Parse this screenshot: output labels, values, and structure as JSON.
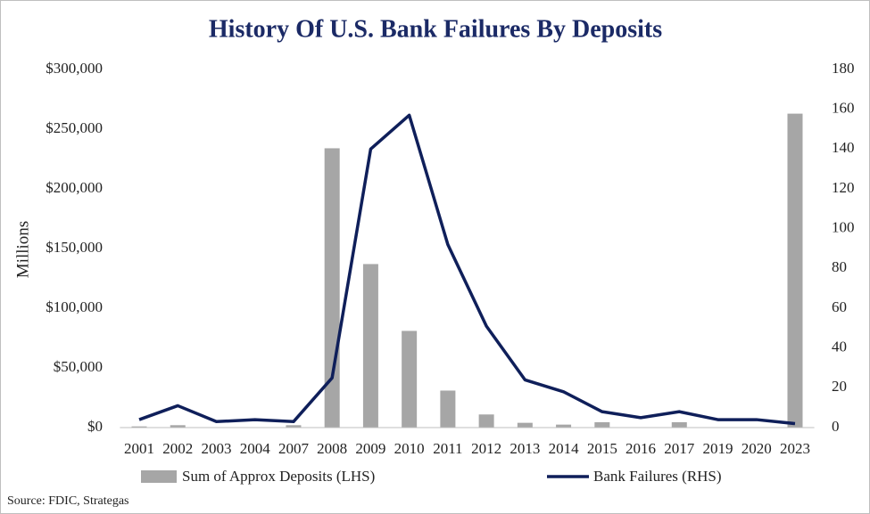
{
  "chart_data": {
    "type": "bar",
    "title": "History Of U.S. Bank Failures By Deposits",
    "y_label": "Millions",
    "source": "Source: FDIC, Strategas",
    "categories": [
      "2001",
      "2002",
      "2003",
      "2004",
      "2007",
      "2008",
      "2009",
      "2010",
      "2011",
      "2012",
      "2013",
      "2014",
      "2015",
      "2016",
      "2017",
      "2019",
      "2020",
      "2023"
    ],
    "series": [
      {
        "name": "Sum of Approx Deposits (LHS)",
        "type": "bar",
        "axis": "y",
        "color": "#a6a6a6",
        "values": [
          1000,
          2000,
          0,
          0,
          2000,
          234000,
          137000,
          81000,
          31000,
          11000,
          4000,
          2500,
          4500,
          0,
          4500,
          0,
          0,
          263000
        ]
      },
      {
        "name": "Bank Failures (RHS)",
        "type": "line",
        "axis": "y2",
        "color": "#0f1f5a",
        "values": [
          4,
          11,
          3,
          4,
          3,
          25,
          140,
          157,
          92,
          51,
          24,
          18,
          8,
          5,
          8,
          4,
          4,
          2
        ]
      }
    ],
    "ylim": [
      0,
      300000
    ],
    "yticks": [
      {
        "value": 0,
        "label": "$0"
      },
      {
        "value": 50000,
        "label": "$50,000"
      },
      {
        "value": 100000,
        "label": "$100,000"
      },
      {
        "value": 150000,
        "label": "$150,000"
      },
      {
        "value": 200000,
        "label": "$200,000"
      },
      {
        "value": 250000,
        "label": "$250,000"
      },
      {
        "value": 300000,
        "label": "$300,000"
      }
    ],
    "y2lim": [
      0,
      180
    ],
    "y2ticks": [
      0,
      20,
      40,
      60,
      80,
      100,
      120,
      140,
      160,
      180
    ]
  }
}
